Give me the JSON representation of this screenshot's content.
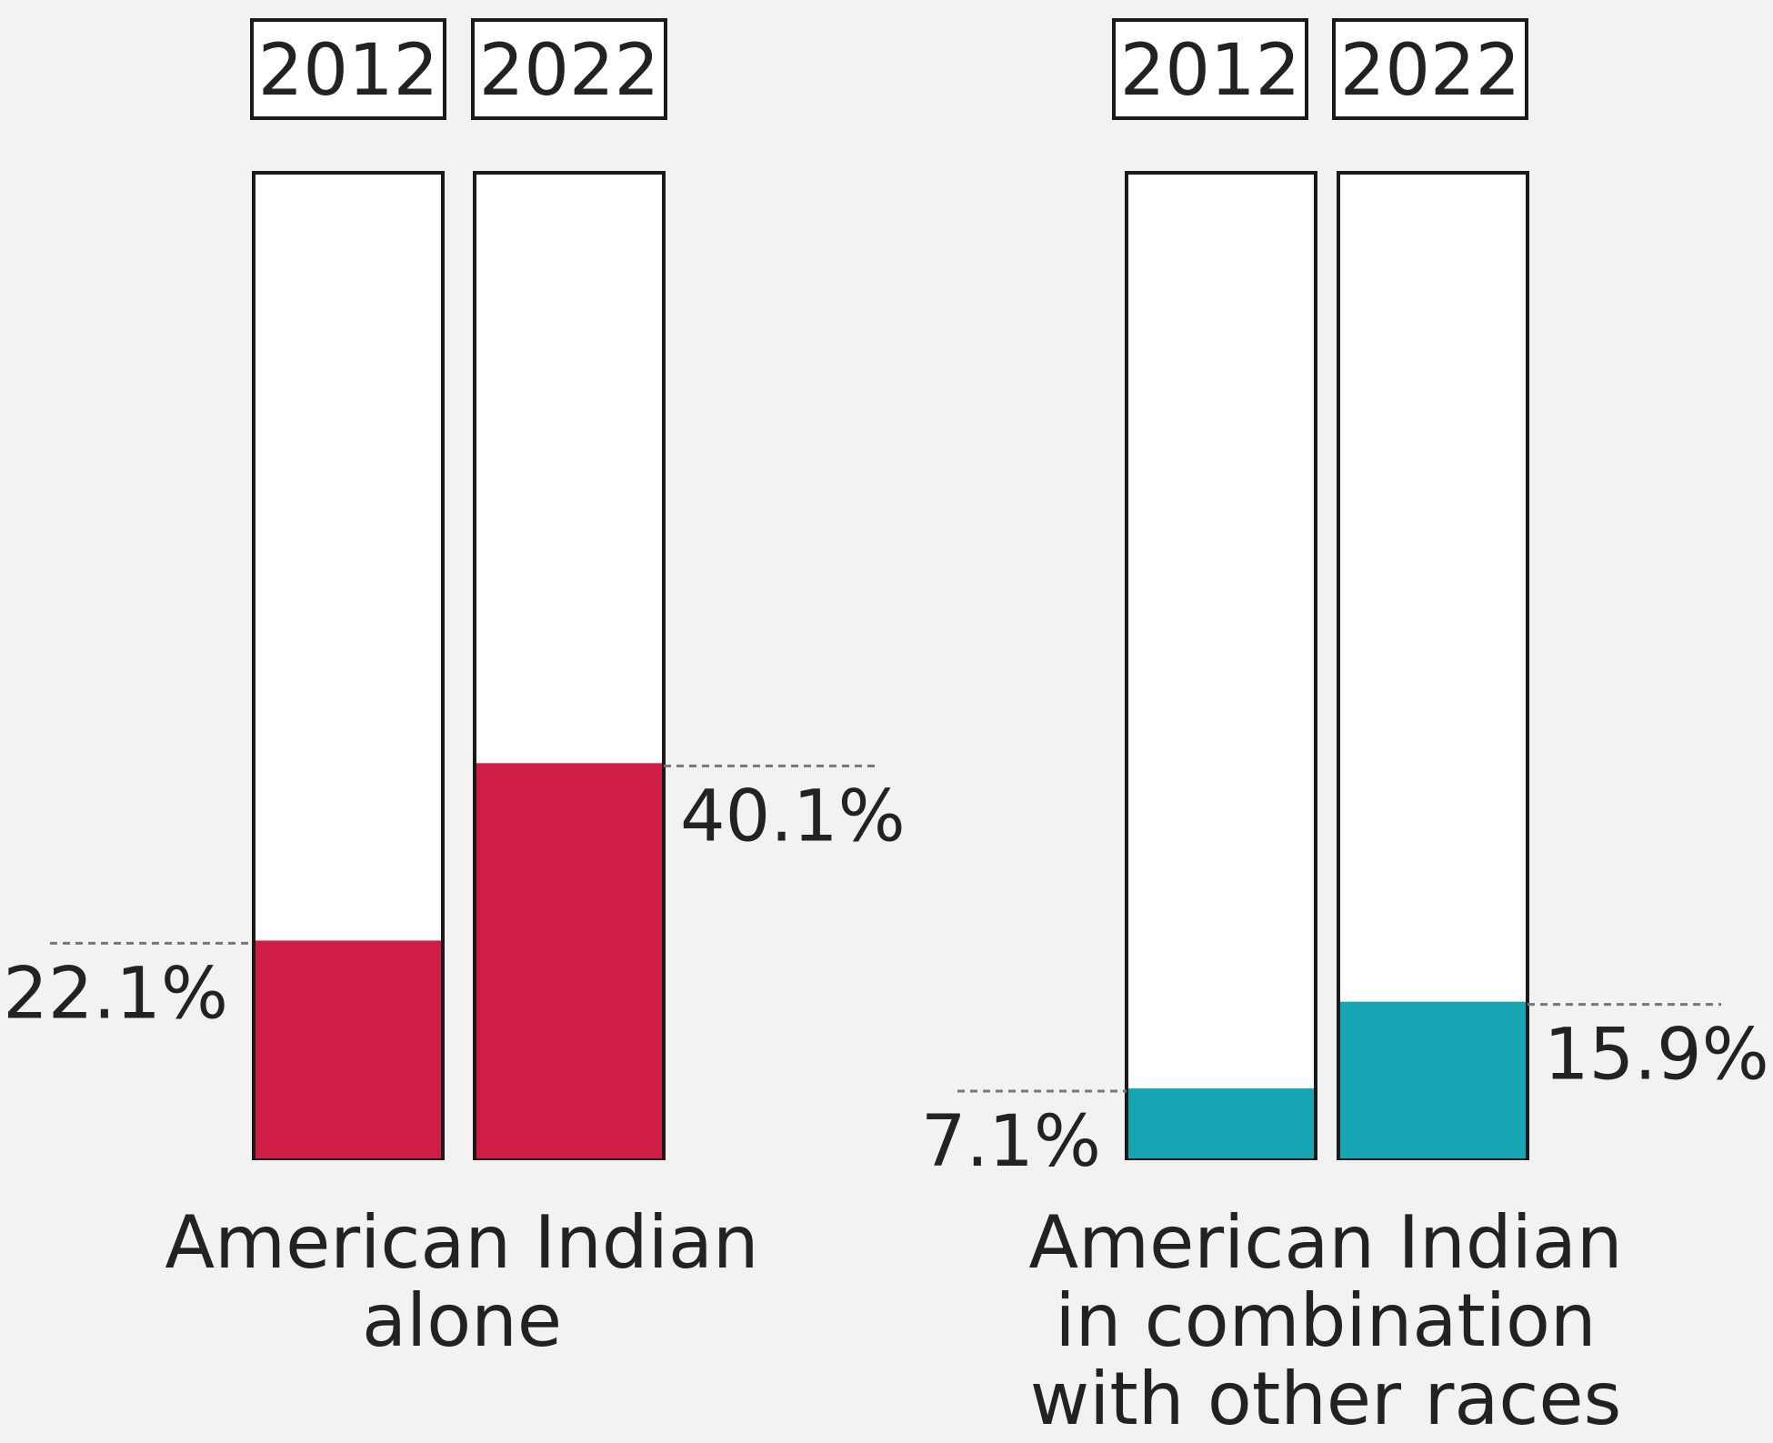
{
  "chart_data": [
    {
      "type": "bar",
      "title": "American Indian alone",
      "title_lines": [
        "American Indian",
        "alone"
      ],
      "categories": [
        "2012",
        "2022"
      ],
      "values": [
        22.1,
        40.1
      ],
      "value_labels": [
        "22.1%",
        "40.1%"
      ],
      "unit": "%",
      "ylim": [
        0,
        100
      ],
      "color": "#cf1d45",
      "grid": false,
      "legend": "none"
    },
    {
      "type": "bar",
      "title": "American Indian in combination with other races",
      "title_lines": [
        "American Indian",
        "in combination",
        "with other races"
      ],
      "categories": [
        "2012",
        "2022"
      ],
      "values": [
        7.1,
        15.9
      ],
      "value_labels": [
        "7.1%",
        "15.9%"
      ],
      "unit": "%",
      "ylim": [
        0,
        100
      ],
      "color": "#17a5b4",
      "grid": false,
      "legend": "none"
    }
  ]
}
